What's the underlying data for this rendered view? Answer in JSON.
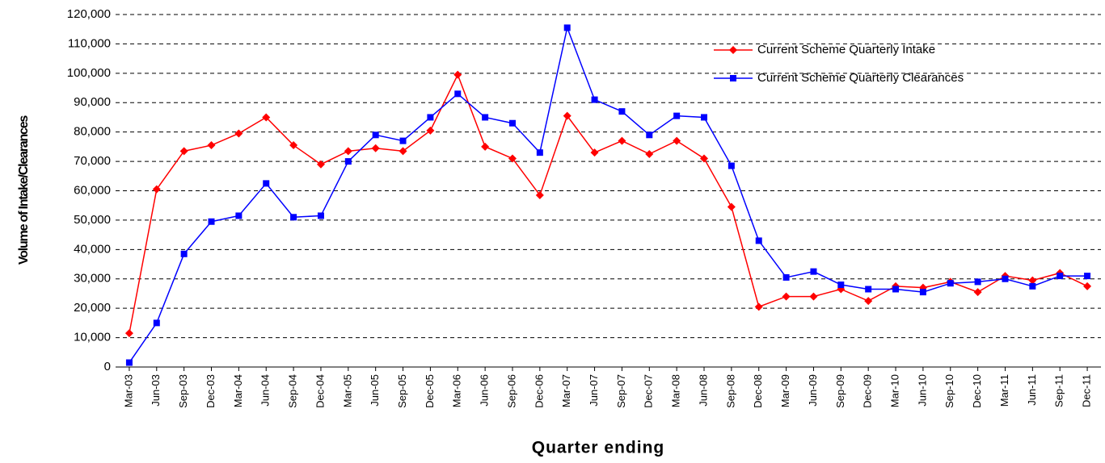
{
  "chart_data": {
    "type": "line",
    "x_label": "Quarter ending",
    "y_label": "Volume of Intake/Clearances",
    "categories": [
      "Mar-03",
      "Jun-03",
      "Sep-03",
      "Dec-03",
      "Mar-04",
      "Jun-04",
      "Sep-04",
      "Dec-04",
      "Mar-05",
      "Jun-05",
      "Sep-05",
      "Dec-05",
      "Mar-06",
      "Jun-06",
      "Sep-06",
      "Dec-06",
      "Mar-07",
      "Jun-07",
      "Sep-07",
      "Dec-07",
      "Mar-08",
      "Jun-08",
      "Sep-08",
      "Dec-08",
      "Mar-09",
      "Jun-09",
      "Sep-09",
      "Dec-09",
      "Mar-10",
      "Jun-10",
      "Sep-10",
      "Dec-10",
      "Mar-11",
      "Jun-11",
      "Sep-11",
      "Dec-11"
    ],
    "series": [
      {
        "name": "Current Scheme Quarterly Intake",
        "color": "#ff0000",
        "marker": "diamond",
        "values": [
          11500,
          60500,
          73500,
          75500,
          79500,
          85000,
          75500,
          69000,
          73500,
          74500,
          73500,
          80500,
          99500,
          75000,
          71000,
          58500,
          85500,
          73000,
          77000,
          72500,
          77000,
          71000,
          54500,
          20500,
          24000,
          24000,
          26500,
          22500,
          27500,
          27000,
          29000,
          25500,
          31000,
          29500,
          32000,
          27500
        ]
      },
      {
        "name": "Current Scheme Quarterly Clearances",
        "color": "#0000ff",
        "marker": "square",
        "values": [
          1500,
          15000,
          38500,
          49500,
          51500,
          62500,
          51000,
          51500,
          70000,
          79000,
          77000,
          85000,
          93000,
          85000,
          83000,
          73000,
          115500,
          91000,
          87000,
          79000,
          85500,
          85000,
          68500,
          43000,
          30500,
          32500,
          28000,
          26500,
          26500,
          25500,
          28500,
          29000,
          30000,
          27500,
          31000,
          31000
        ]
      }
    ],
    "ylim": [
      0,
      120000
    ],
    "yticks": [
      0,
      {
        "value": 10000,
        "label": "10,000"
      },
      {
        "value": 20000,
        "label": "20,000"
      },
      {
        "value": 30000,
        "label": "30,000"
      },
      {
        "value": 40000,
        "label": "40,000"
      },
      {
        "value": 50000,
        "label": "50,000"
      },
      {
        "value": 60000,
        "label": "60,000"
      },
      {
        "value": 70000,
        "label": "70,000"
      },
      {
        "value": 80000,
        "label": "80,000"
      },
      {
        "value": 90000,
        "label": "90,000"
      },
      {
        "value": 100000,
        "label": "100,000"
      },
      {
        "value": 110000,
        "label": "110,000"
      },
      {
        "value": 120000,
        "label": "120,000"
      }
    ],
    "grid": true,
    "legend": "upper right"
  }
}
